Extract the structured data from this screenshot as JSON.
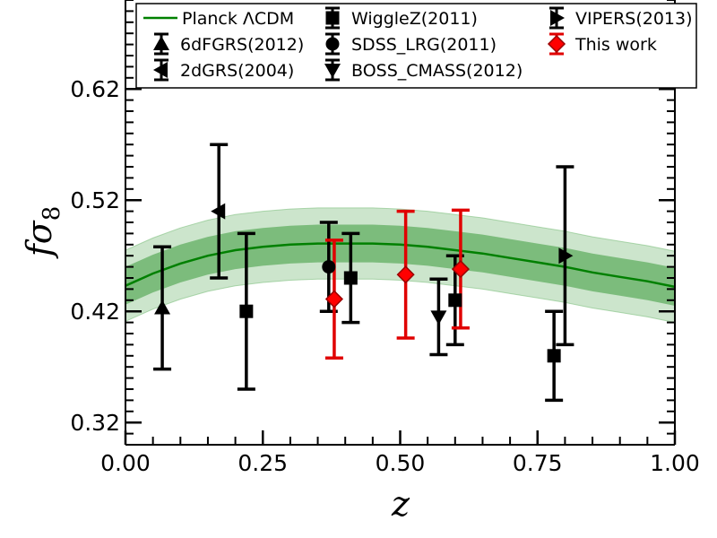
{
  "chart_data": {
    "type": "scatter",
    "title": "",
    "xlabel": "z",
    "ylabel": "fσ8",
    "xlim": [
      0.0,
      1.0
    ],
    "ylim": [
      0.3,
      0.7
    ],
    "xticks": [
      0.0,
      0.25,
      0.5,
      0.75,
      1.0
    ],
    "xtick_labels": [
      "0.00",
      "0.25",
      "0.50",
      "0.75",
      "1.00"
    ],
    "yticks": [
      0.32,
      0.42,
      0.52,
      0.62
    ],
    "ytick_labels": [
      "0.32",
      "0.42",
      "0.52",
      "0.62"
    ],
    "legend_position": "top",
    "model": {
      "name": "Planck ΛCDM",
      "color": "#008000",
      "inner_band_color": "#3a9a3a",
      "outer_band_color": "#7fbf7f",
      "z": [
        0.0,
        0.05,
        0.1,
        0.15,
        0.2,
        0.25,
        0.3,
        0.35,
        0.4,
        0.45,
        0.5,
        0.55,
        0.6,
        0.65,
        0.7,
        0.75,
        0.8,
        0.85,
        0.9,
        0.95,
        1.0
      ],
      "f_sigma8": [
        0.443,
        0.454,
        0.463,
        0.47,
        0.475,
        0.478,
        0.48,
        0.481,
        0.481,
        0.481,
        0.48,
        0.478,
        0.475,
        0.472,
        0.468,
        0.464,
        0.46,
        0.455,
        0.451,
        0.447,
        0.442
      ],
      "inner_band_halfwidth": [
        0.017,
        0.017,
        0.017,
        0.017,
        0.017,
        0.017,
        0.017,
        0.017,
        0.017,
        0.017,
        0.017,
        0.017,
        0.017,
        0.017,
        0.017,
        0.017,
        0.017,
        0.017,
        0.017,
        0.017,
        0.017
      ],
      "outer_band_halfwidth": [
        0.032,
        0.032,
        0.032,
        0.032,
        0.032,
        0.032,
        0.032,
        0.032,
        0.032,
        0.032,
        0.032,
        0.032,
        0.032,
        0.032,
        0.032,
        0.032,
        0.032,
        0.032,
        0.032,
        0.032,
        0.032
      ]
    },
    "series": [
      {
        "name": "6dFGRS(2012)",
        "marker": "triangle-up",
        "color": "#000000",
        "points": [
          {
            "z": 0.067,
            "value": 0.423,
            "err": 0.055
          }
        ]
      },
      {
        "name": "2dGRS(2004)",
        "marker": "triangle-left",
        "color": "#000000",
        "points": [
          {
            "z": 0.17,
            "value": 0.51,
            "err": 0.06
          }
        ]
      },
      {
        "name": "WiggleZ(2011)",
        "marker": "square",
        "color": "#000000",
        "points": [
          {
            "z": 0.22,
            "value": 0.42,
            "err": 0.07
          },
          {
            "z": 0.41,
            "value": 0.45,
            "err": 0.04
          },
          {
            "z": 0.6,
            "value": 0.43,
            "err": 0.04
          },
          {
            "z": 0.78,
            "value": 0.38,
            "err": 0.04
          }
        ]
      },
      {
        "name": "SDSS_LRG(2011)",
        "marker": "circle",
        "color": "#000000",
        "points": [
          {
            "z": 0.37,
            "value": 0.46,
            "err": 0.04
          }
        ]
      },
      {
        "name": "BOSS_CMASS(2012)",
        "marker": "triangle-down",
        "color": "#000000",
        "points": [
          {
            "z": 0.57,
            "value": 0.415,
            "err": 0.034
          }
        ]
      },
      {
        "name": "VIPERS(2013)",
        "marker": "triangle-right",
        "color": "#000000",
        "points": [
          {
            "z": 0.8,
            "value": 0.47,
            "err": 0.08
          }
        ]
      },
      {
        "name": "This work",
        "marker": "diamond",
        "color": "#ff0000",
        "errcolor": "#e00000",
        "points": [
          {
            "z": 0.38,
            "value": 0.431,
            "err": 0.053
          },
          {
            "z": 0.51,
            "value": 0.453,
            "err": 0.057
          },
          {
            "z": 0.61,
            "value": 0.458,
            "err": 0.053
          }
        ]
      }
    ]
  }
}
